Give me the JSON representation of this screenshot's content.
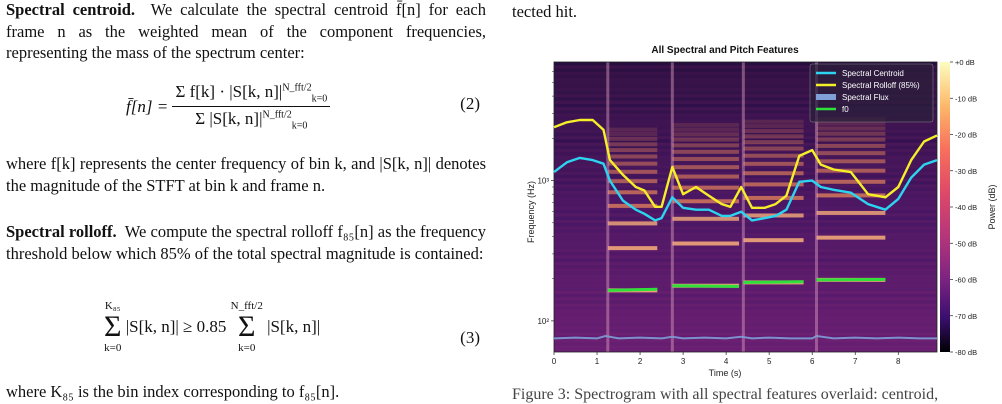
{
  "left": {
    "p1_head": "Spectral centroid.",
    "p1_body": "We calculate the spectral centroid f̄[n] for each frame n as the weighted mean of the component frequencies, representing the mass of the spectrum center:",
    "eq2": {
      "lhs": "f̄[n] =",
      "num": "Σ f[k] · |S[k, n]|",
      "den": "Σ |S[k, n]|",
      "upper": "N_fft/2",
      "lower": "k=0",
      "number": "(2)"
    },
    "p2": "where f[k] represents the center frequency of bin k, and |S[k, n]| denotes the magnitude of the STFT at bin k and frame n.",
    "p3_head": "Spectral rolloff.",
    "p3_body": "We compute the spectral rolloff f₈₅[n] as the frequency threshold below which 85% of the total spectral magnitude is contained:",
    "eq3": {
      "lhs_upper": "K₈₅",
      "lhs_lower": "k=0",
      "lhs_term": "|S[k, n]| ≥ 0.85",
      "rhs_upper": "N_fft/2",
      "rhs_lower": "k=0",
      "rhs_term": "|S[k, n]|",
      "number": "(3)"
    },
    "p4": "where K₈₅ is the bin index corresponding to f₈₅[n]."
  },
  "right": {
    "tail_text": "tected hit.",
    "caption_fragment": "Figure 3: Spectrogram with all spectral features overlaid: centroid,"
  },
  "chart_data": {
    "type": "line",
    "title": "All Spectral and Pitch Features",
    "xlabel": "Time (s)",
    "ylabel": "Frequency (Hz)",
    "colorbar_label": "Power (dB)",
    "x_ticks": [
      "0",
      "1",
      "2",
      "3",
      "4",
      "5",
      "6",
      "7",
      "8"
    ],
    "y_ticks": [
      "10²",
      "10³"
    ],
    "colorbar_ticks": [
      "+0 dB",
      "-10 dB",
      "-20 dB",
      "-30 dB",
      "-40 dB",
      "-50 dB",
      "-60 dB",
      "-70 dB",
      "-80 dB"
    ],
    "xlim": [
      0,
      8.9
    ],
    "ylim_log_hz": [
      60,
      7000
    ],
    "y_scale": "log",
    "legend_position": "top-right",
    "colors": {
      "centroid": "#2dd4f0",
      "rolloff": "#f5ef2a",
      "flux": "#7f9fd6",
      "f0": "#2fe03a",
      "background": "#0d0826",
      "harmonic": "#f08a5a"
    },
    "series": [
      {
        "name": "Spectral Centroid",
        "x": [
          0,
          0.3,
          0.6,
          0.9,
          1.15,
          1.3,
          1.6,
          1.9,
          2.1,
          2.35,
          2.5,
          2.75,
          3.0,
          3.3,
          3.6,
          3.9,
          4.1,
          4.35,
          4.6,
          4.9,
          5.15,
          5.4,
          5.7,
          6.0,
          6.2,
          6.5,
          6.9,
          7.3,
          7.7,
          8.0,
          8.3,
          8.6,
          8.9
        ],
        "values": [
          1150,
          1350,
          1450,
          1400,
          1320,
          1000,
          720,
          620,
          580,
          520,
          540,
          760,
          640,
          620,
          620,
          560,
          560,
          600,
          520,
          540,
          560,
          620,
          980,
          1000,
          900,
          860,
          820,
          680,
          620,
          740,
          1050,
          1300,
          1400
        ]
      },
      {
        "name": "Spectral Rolloff (85%)",
        "x": [
          0,
          0.3,
          0.6,
          0.9,
          1.15,
          1.3,
          1.6,
          1.9,
          2.1,
          2.35,
          2.5,
          2.75,
          3.0,
          3.3,
          3.6,
          3.9,
          4.1,
          4.35,
          4.6,
          4.9,
          5.15,
          5.4,
          5.7,
          6.0,
          6.2,
          6.5,
          6.9,
          7.3,
          7.7,
          8.0,
          8.3,
          8.6,
          8.9
        ],
        "values": [
          2400,
          2600,
          2700,
          2700,
          2300,
          1400,
          1100,
          900,
          850,
          650,
          650,
          1250,
          800,
          900,
          780,
          680,
          650,
          900,
          640,
          640,
          680,
          780,
          1500,
          1650,
          1300,
          1200,
          1150,
          800,
          760,
          900,
          1400,
          1900,
          2100
        ]
      },
      {
        "name": "Spectral Flux",
        "x": [
          0,
          0.5,
          1.0,
          1.2,
          1.5,
          2.0,
          2.5,
          2.75,
          3.0,
          3.5,
          4.0,
          4.35,
          4.6,
          5.0,
          5.5,
          6.0,
          6.1,
          6.5,
          7.0,
          7.5,
          8.0,
          8.5,
          8.9
        ],
        "values": [
          75,
          76,
          75,
          78,
          75,
          76,
          75,
          77,
          75,
          76,
          75,
          77,
          75,
          76,
          75,
          75,
          78,
          75,
          76,
          75,
          76,
          75,
          75
        ]
      },
      {
        "name": "f0",
        "segments": [
          {
            "x": [
              1.25,
              2.4
            ],
            "values": [
              165,
              168
            ]
          },
          {
            "x": [
              2.75,
              4.3
            ],
            "values": [
              178,
              176
            ]
          },
          {
            "x": [
              4.4,
              5.8
            ],
            "values": [
              188,
              190
            ]
          },
          {
            "x": [
              6.1,
              7.7
            ],
            "values": [
              196,
              197
            ]
          }
        ]
      }
    ]
  }
}
